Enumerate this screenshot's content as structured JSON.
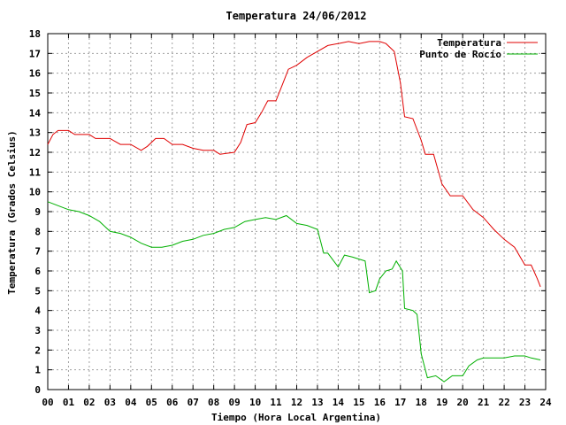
{
  "chart_data": {
    "type": "line",
    "title": "Temperatura 24/06/2012",
    "xlabel": "Tiempo (Hora Local Argentina)",
    "ylabel": "Temperatura (Grados Celsius)",
    "xlim": [
      0,
      24
    ],
    "ylim": [
      0,
      18
    ],
    "x_ticks": [
      "00",
      "01",
      "02",
      "03",
      "04",
      "05",
      "06",
      "07",
      "08",
      "09",
      "10",
      "11",
      "12",
      "13",
      "14",
      "15",
      "16",
      "17",
      "18",
      "19",
      "20",
      "21",
      "22",
      "23",
      "24"
    ],
    "y_ticks": [
      0,
      1,
      2,
      3,
      4,
      5,
      6,
      7,
      8,
      9,
      10,
      11,
      12,
      13,
      14,
      15,
      16,
      17,
      18
    ],
    "grid": true,
    "legend_position": "top-right",
    "series": [
      {
        "name": "Temperatura",
        "color": "#e00000",
        "points": [
          [
            0,
            12.4
          ],
          [
            0.25,
            12.9
          ],
          [
            0.5,
            13.1
          ],
          [
            1,
            13.1
          ],
          [
            1.3,
            12.9
          ],
          [
            2,
            12.9
          ],
          [
            2.3,
            12.7
          ],
          [
            3,
            12.7
          ],
          [
            3.5,
            12.4
          ],
          [
            4,
            12.4
          ],
          [
            4.5,
            12.1
          ],
          [
            4.8,
            12.3
          ],
          [
            5.2,
            12.7
          ],
          [
            5.6,
            12.7
          ],
          [
            6,
            12.4
          ],
          [
            6.5,
            12.4
          ],
          [
            7,
            12.2
          ],
          [
            7.5,
            12.1
          ],
          [
            8,
            12.1
          ],
          [
            8.3,
            11.9
          ],
          [
            9,
            12
          ],
          [
            9.3,
            12.5
          ],
          [
            9.6,
            13.4
          ],
          [
            10,
            13.5
          ],
          [
            10.3,
            14
          ],
          [
            10.6,
            14.6
          ],
          [
            11,
            14.6
          ],
          [
            11.3,
            15.4
          ],
          [
            11.6,
            16.2
          ],
          [
            12,
            16.4
          ],
          [
            12.5,
            16.8
          ],
          [
            13,
            17.1
          ],
          [
            13.5,
            17.4
          ],
          [
            14,
            17.5
          ],
          [
            14.5,
            17.6
          ],
          [
            15,
            17.5
          ],
          [
            15.5,
            17.6
          ],
          [
            16,
            17.6
          ],
          [
            16.3,
            17.5
          ],
          [
            16.7,
            17.1
          ],
          [
            17,
            15.5
          ],
          [
            17.2,
            13.8
          ],
          [
            17.6,
            13.7
          ],
          [
            18,
            12.6
          ],
          [
            18.2,
            11.9
          ],
          [
            18.6,
            11.9
          ],
          [
            19,
            10.4
          ],
          [
            19.4,
            9.8
          ],
          [
            20,
            9.8
          ],
          [
            20.5,
            9.1
          ],
          [
            21,
            8.7
          ],
          [
            21.5,
            8.1
          ],
          [
            22,
            7.6
          ],
          [
            22.5,
            7.2
          ],
          [
            23,
            6.3
          ],
          [
            23.3,
            6.3
          ],
          [
            23.6,
            5.6
          ],
          [
            23.75,
            5.2
          ]
        ]
      },
      {
        "name": "Punto de Rocío",
        "color": "#00b000",
        "points": [
          [
            0,
            9.5
          ],
          [
            0.5,
            9.3
          ],
          [
            1,
            9.1
          ],
          [
            1.5,
            9.0
          ],
          [
            2,
            8.8
          ],
          [
            2.5,
            8.5
          ],
          [
            3,
            8.0
          ],
          [
            3.5,
            7.9
          ],
          [
            4,
            7.7
          ],
          [
            4.5,
            7.4
          ],
          [
            5,
            7.2
          ],
          [
            5.5,
            7.2
          ],
          [
            6,
            7.3
          ],
          [
            6.5,
            7.5
          ],
          [
            7,
            7.6
          ],
          [
            7.5,
            7.8
          ],
          [
            8,
            7.9
          ],
          [
            8.5,
            8.1
          ],
          [
            9,
            8.2
          ],
          [
            9.5,
            8.5
          ],
          [
            10,
            8.6
          ],
          [
            10.5,
            8.7
          ],
          [
            11,
            8.6
          ],
          [
            11.5,
            8.8
          ],
          [
            12,
            8.4
          ],
          [
            12.5,
            8.3
          ],
          [
            13,
            8.1
          ],
          [
            13.3,
            6.9
          ],
          [
            13.5,
            6.9
          ],
          [
            14,
            6.2
          ],
          [
            14.3,
            6.8
          ],
          [
            14.7,
            6.7
          ],
          [
            15,
            6.6
          ],
          [
            15.3,
            6.5
          ],
          [
            15.5,
            4.9
          ],
          [
            15.8,
            5.0
          ],
          [
            16,
            5.6
          ],
          [
            16.3,
            6.0
          ],
          [
            16.6,
            6.1
          ],
          [
            16.8,
            6.5
          ],
          [
            17.1,
            6.0
          ],
          [
            17.2,
            4.1
          ],
          [
            17.6,
            4.0
          ],
          [
            17.8,
            3.8
          ],
          [
            18,
            1.8
          ],
          [
            18.3,
            0.6
          ],
          [
            18.7,
            0.7
          ],
          [
            19.1,
            0.4
          ],
          [
            19.5,
            0.7
          ],
          [
            20,
            0.7
          ],
          [
            20.3,
            1.2
          ],
          [
            20.7,
            1.5
          ],
          [
            21,
            1.6
          ],
          [
            21.5,
            1.6
          ],
          [
            22,
            1.6
          ],
          [
            22.5,
            1.7
          ],
          [
            23,
            1.7
          ],
          [
            23.3,
            1.6
          ],
          [
            23.75,
            1.5
          ]
        ]
      }
    ]
  }
}
